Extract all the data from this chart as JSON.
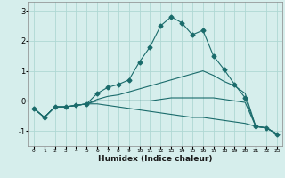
{
  "xlabel": "Humidex (Indice chaleur)",
  "background_color": "#d6eeec",
  "grid_color": "#afd8d4",
  "line_color": "#1a6b6b",
  "x_ticks": [
    0,
    1,
    2,
    3,
    4,
    5,
    6,
    7,
    8,
    9,
    10,
    11,
    12,
    13,
    14,
    15,
    16,
    17,
    18,
    19,
    20,
    21,
    22,
    23
  ],
  "ylim": [
    -1.5,
    3.3
  ],
  "xlim": [
    -0.5,
    23.5
  ],
  "lines": [
    {
      "x": [
        0,
        1,
        2,
        3,
        4,
        5,
        6,
        7,
        8,
        9,
        10,
        11,
        12,
        13,
        14,
        15,
        16,
        17,
        18,
        19,
        20,
        21,
        22,
        23
      ],
      "y": [
        -0.25,
        -0.55,
        -0.2,
        -0.2,
        -0.15,
        -0.1,
        0.25,
        0.45,
        0.55,
        0.7,
        1.3,
        1.8,
        2.5,
        2.8,
        2.6,
        2.2,
        2.35,
        1.5,
        1.05,
        0.55,
        0.1,
        -0.85,
        -0.9,
        -1.1
      ],
      "marker": "D",
      "markersize": 2.5
    },
    {
      "x": [
        0,
        1,
        2,
        3,
        4,
        5,
        6,
        7,
        8,
        9,
        10,
        11,
        12,
        13,
        14,
        15,
        16,
        17,
        18,
        19,
        20,
        21,
        22,
        23
      ],
      "y": [
        -0.25,
        -0.55,
        -0.2,
        -0.2,
        -0.15,
        -0.1,
        0.05,
        0.15,
        0.2,
        0.3,
        0.4,
        0.5,
        0.6,
        0.7,
        0.8,
        0.9,
        1.0,
        0.85,
        0.65,
        0.5,
        0.25,
        -0.85,
        -0.9,
        -1.1
      ],
      "marker": null,
      "markersize": 0
    },
    {
      "x": [
        0,
        1,
        2,
        3,
        4,
        5,
        6,
        7,
        8,
        9,
        10,
        11,
        12,
        13,
        14,
        15,
        16,
        17,
        18,
        19,
        20,
        21,
        22,
        23
      ],
      "y": [
        -0.25,
        -0.55,
        -0.2,
        -0.2,
        -0.15,
        -0.1,
        0.0,
        0.0,
        0.0,
        0.0,
        0.0,
        0.0,
        0.05,
        0.1,
        0.1,
        0.1,
        0.1,
        0.1,
        0.05,
        0.0,
        -0.05,
        -0.85,
        -0.9,
        -1.1
      ],
      "marker": null,
      "markersize": 0
    },
    {
      "x": [
        0,
        1,
        2,
        3,
        4,
        5,
        6,
        7,
        8,
        9,
        10,
        11,
        12,
        13,
        14,
        15,
        16,
        17,
        18,
        19,
        20,
        21,
        22,
        23
      ],
      "y": [
        -0.25,
        -0.55,
        -0.2,
        -0.2,
        -0.15,
        -0.1,
        -0.1,
        -0.15,
        -0.2,
        -0.25,
        -0.3,
        -0.35,
        -0.4,
        -0.45,
        -0.5,
        -0.55,
        -0.55,
        -0.6,
        -0.65,
        -0.7,
        -0.75,
        -0.85,
        -0.9,
        -1.1
      ],
      "marker": null,
      "markersize": 0
    }
  ]
}
